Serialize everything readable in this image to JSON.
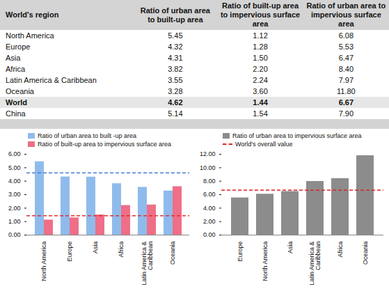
{
  "table": {
    "columns": [
      "World's region",
      "Ratio of urban area to built-up area",
      "Ratio of built-up area to impervious surface area",
      "Ratio of urban area to impervious surface area"
    ],
    "rows": [
      [
        "North America",
        "5.45",
        "1.12",
        "6.08"
      ],
      [
        "Europe",
        "4.32",
        "1.28",
        "5.53"
      ],
      [
        "Asia",
        "4.31",
        "1.50",
        "6.47"
      ],
      [
        "Africa",
        "3.82",
        "2.20",
        "8.40"
      ],
      [
        "Latin America & Caribbean",
        "3.55",
        "2.24",
        "7.97"
      ],
      [
        "Oceania",
        "3.28",
        "3.60",
        "11.80"
      ],
      [
        "World",
        "4.62",
        "1.44",
        "6.67"
      ],
      [
        "China",
        "5.14",
        "1.54",
        "7.90"
      ]
    ]
  },
  "chart_data": [
    {
      "type": "bar",
      "categories": [
        "North America",
        "Europe",
        "Asia",
        "Africa",
        "Latin America & Caribbean",
        "Oceania"
      ],
      "series": [
        {
          "name": "Ratio of urban area to built -up area",
          "color": "#8fbbec",
          "values": [
            5.45,
            4.32,
            4.31,
            3.82,
            3.55,
            3.28
          ]
        },
        {
          "name": "Ratio of built-up area to impervious surface area",
          "color": "#ee6f87",
          "values": [
            1.12,
            1.28,
            1.5,
            2.2,
            2.24,
            3.6
          ]
        }
      ],
      "reference_lines": [
        {
          "value": 4.62,
          "color": "#4a7fd4",
          "line_style": "dashed"
        },
        {
          "value": 1.44,
          "color": "#e03030",
          "line_style": "dashed"
        }
      ],
      "ylim": [
        0,
        6
      ],
      "yticks": [
        {
          "value": 0,
          "label": "0.00"
        },
        {
          "value": 1,
          "label": "1.00"
        },
        {
          "value": 2,
          "label": "2.00"
        },
        {
          "value": 3,
          "label": "3.00"
        },
        {
          "value": 4,
          "label": "4.00"
        },
        {
          "value": 5,
          "label": "5.00"
        },
        {
          "value": 6,
          "label": "6.00"
        }
      ],
      "legend": "top-left"
    },
    {
      "type": "bar",
      "categories": [
        "Europe",
        "North America",
        "Asia",
        "Latin America & Caribbean",
        "Africa",
        "Oceania"
      ],
      "series": [
        {
          "name": "Ratio of urban area to impervious surface area",
          "color": "#8c8c8c",
          "values": [
            5.53,
            6.08,
            6.47,
            7.97,
            8.4,
            11.8
          ]
        }
      ],
      "reference_lines": [
        {
          "name": "World's overall value",
          "value": 6.67,
          "color": "#e02020",
          "line_style": "dashed"
        }
      ],
      "ylim": [
        0,
        12
      ],
      "yticks": [
        {
          "value": 0,
          "label": "0.00"
        },
        {
          "value": 2,
          "label": "2.00"
        },
        {
          "value": 4,
          "label": "4.00"
        },
        {
          "value": 6,
          "label": "6.00"
        },
        {
          "value": 8,
          "label": "8.00"
        },
        {
          "value": 10,
          "label": "10.00"
        },
        {
          "value": 12,
          "label": "12.00"
        }
      ],
      "legend": "top-left"
    }
  ]
}
